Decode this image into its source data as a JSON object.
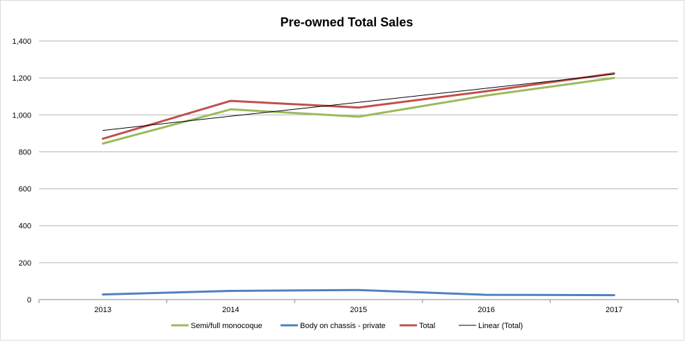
{
  "chart_data": {
    "type": "line",
    "title": "Pre-owned Total Sales",
    "categories": [
      "2013",
      "2014",
      "2015",
      "2016",
      "2017"
    ],
    "ylim": [
      0,
      1400
    ],
    "yticks": [
      0,
      200,
      400,
      600,
      800,
      1000,
      1200,
      1400
    ],
    "ytick_labels": [
      "0",
      "200",
      "400",
      "600",
      "800",
      "1,000",
      "1,200",
      "1,400"
    ],
    "grid": true,
    "legend_position": "bottom",
    "series": [
      {
        "name": "Semi/full monocoque",
        "color": "#9bbb59",
        "style": "line",
        "values": [
          845,
          1030,
          990,
          1105,
          1200
        ]
      },
      {
        "name": "Body on chassis - private",
        "color": "#4f81bd",
        "style": "line",
        "values": [
          28,
          47,
          52,
          26,
          24
        ]
      },
      {
        "name": "Total",
        "color": "#c0504d",
        "style": "line",
        "values": [
          871,
          1076,
          1040,
          1128,
          1225
        ]
      },
      {
        "name": "Linear (Total)",
        "color": "#000000",
        "style": "trend",
        "values": [
          916,
          993,
          1068,
          1144,
          1220
        ]
      }
    ]
  }
}
